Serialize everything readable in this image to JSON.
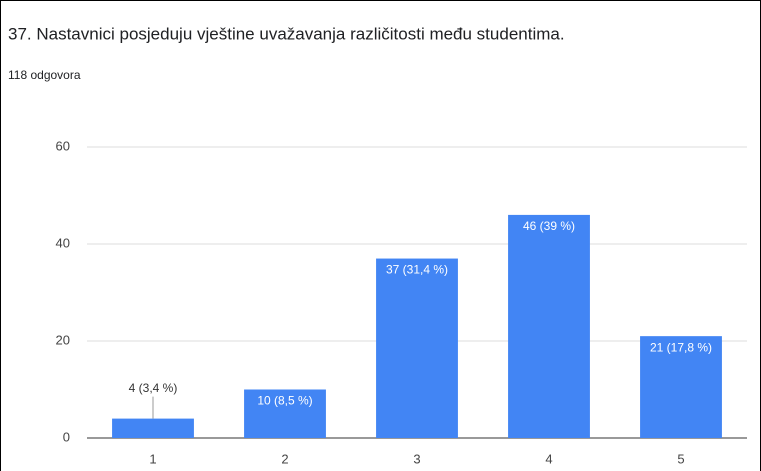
{
  "chart_data": {
    "type": "bar",
    "title": "37. Nastavnici posjeduju vještine uvažavanja različitosti među studentima.",
    "subtitle": "118 odgovora",
    "categories": [
      "1",
      "2",
      "3",
      "4",
      "5"
    ],
    "values": [
      4,
      10,
      37,
      46,
      21
    ],
    "value_labels": [
      "4 (3,4 %)",
      "10 (8,5 %)",
      "37 (31,4 %)",
      "46 (39 %)",
      "21 (17,8 %)"
    ],
    "color": "#4285f4",
    "ylim": [
      0,
      60
    ],
    "yticks": [
      0,
      20,
      40,
      60
    ],
    "grid": true
  }
}
